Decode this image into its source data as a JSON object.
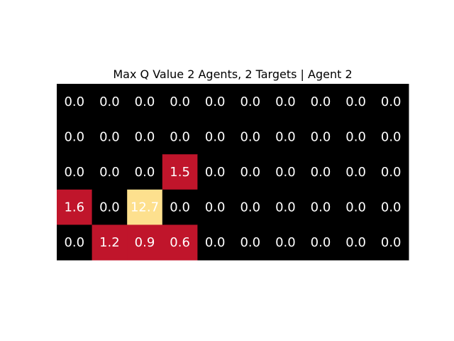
{
  "chart_data": {
    "type": "heatmap",
    "title": "Max Q Value 2 Agents, 2 Targets | Agent 2",
    "rows": 5,
    "cols": 10,
    "values": [
      [
        0.0,
        0.0,
        0.0,
        0.0,
        0.0,
        0.0,
        0.0,
        0.0,
        0.0,
        0.0
      ],
      [
        0.0,
        0.0,
        0.0,
        0.0,
        0.0,
        0.0,
        0.0,
        0.0,
        0.0,
        0.0
      ],
      [
        0.0,
        0.0,
        0.0,
        1.5,
        0.0,
        0.0,
        0.0,
        0.0,
        0.0,
        0.0
      ],
      [
        1.6,
        0.0,
        12.7,
        0.0,
        0.0,
        0.0,
        0.0,
        0.0,
        0.0,
        0.0
      ],
      [
        0.0,
        1.2,
        0.9,
        0.6,
        0.0,
        0.0,
        0.0,
        0.0,
        0.0,
        0.0
      ]
    ],
    "labels": [
      [
        "0.0",
        "0.0",
        "0.0",
        "0.0",
        "0.0",
        "0.0",
        "0.0",
        "0.0",
        "0.0",
        "0.0"
      ],
      [
        "0.0",
        "0.0",
        "0.0",
        "0.0",
        "0.0",
        "0.0",
        "0.0",
        "0.0",
        "0.0",
        "0.0"
      ],
      [
        "0.0",
        "0.0",
        "0.0",
        "1.5",
        "0.0",
        "0.0",
        "0.0",
        "0.0",
        "0.0",
        "0.0"
      ],
      [
        "1.6",
        "0.0",
        "12.7",
        "0.0",
        "0.0",
        "0.0",
        "0.0",
        "0.0",
        "0.0",
        "0.0"
      ],
      [
        "0.0",
        "1.2",
        "0.9",
        "0.6",
        "0.0",
        "0.0",
        "0.0",
        "0.0",
        "0.0",
        "0.0"
      ]
    ],
    "colormap": "hot",
    "colors": {
      "zero": "#000000",
      "low": "#c0152b",
      "high": "#fde08e",
      "label": "#ffffff"
    },
    "axes_visible": false,
    "grid": false,
    "legend": "none"
  }
}
